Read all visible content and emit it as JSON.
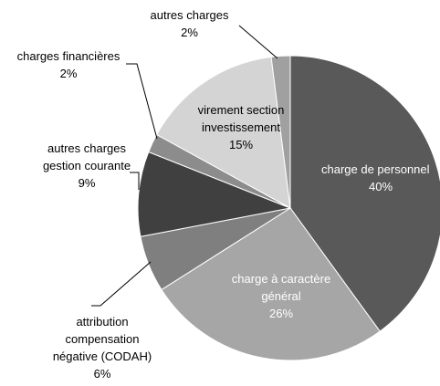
{
  "chart_data": {
    "type": "pie",
    "categories": [
      "charge de personnel",
      "charge à caractère général",
      "attribution compensation négative (CODAH)",
      "autres charges gestion courante",
      "charges financières",
      "virement section investissement",
      "autres charges"
    ],
    "values": [
      40,
      26,
      6,
      9,
      2,
      15,
      2
    ],
    "value_labels": [
      "40%",
      "26%",
      "6%",
      "9%",
      "2%",
      "15%",
      "2%"
    ],
    "colors": [
      "#595959",
      "#a6a6a6",
      "#7f7f7f",
      "#404040",
      "#8c8c8c",
      "#d4d4d4",
      "#a0a0a0"
    ]
  }
}
